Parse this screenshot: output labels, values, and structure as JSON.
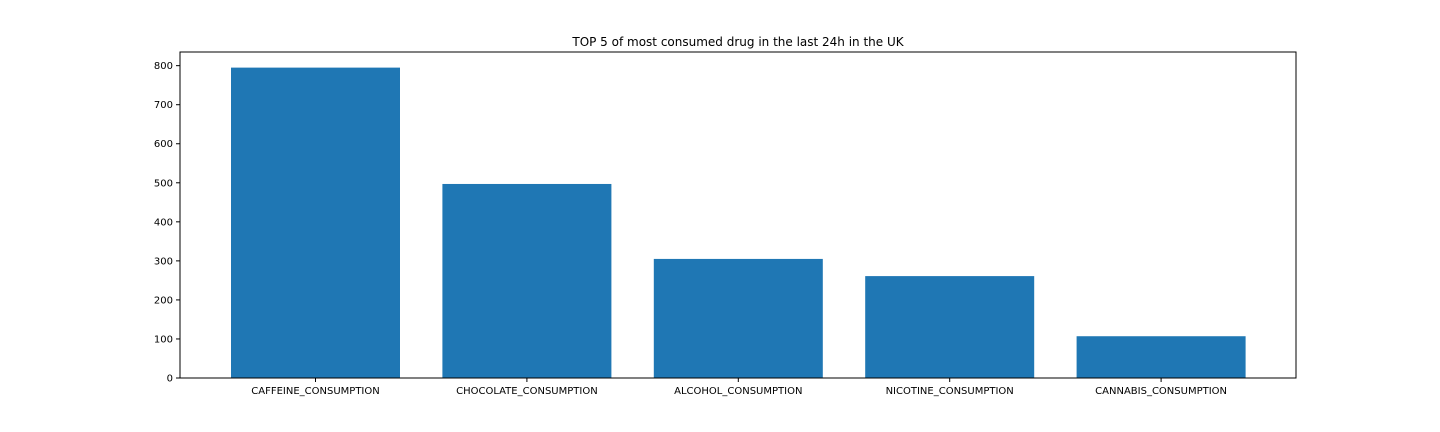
{
  "colors": {
    "bar": "#1f77b4",
    "axis": "#000000",
    "background": "#ffffff"
  },
  "chart_data": {
    "type": "bar",
    "title": "TOP 5 of most consumed drug in the last 24h in the UK",
    "xlabel": "",
    "ylabel": "",
    "categories": [
      "CAFFEINE_CONSUMPTION",
      "CHOCOLATE_CONSUMPTION",
      "ALCOHOL_CONSUMPTION",
      "NICOTINE_CONSUMPTION",
      "CANNABIS_CONSUMPTION"
    ],
    "values": [
      795,
      497,
      305,
      261,
      107
    ],
    "ylim": [
      0,
      835
    ],
    "yticks": [
      0,
      100,
      200,
      300,
      400,
      500,
      600,
      700,
      800
    ],
    "grid": false,
    "legend": "none"
  }
}
